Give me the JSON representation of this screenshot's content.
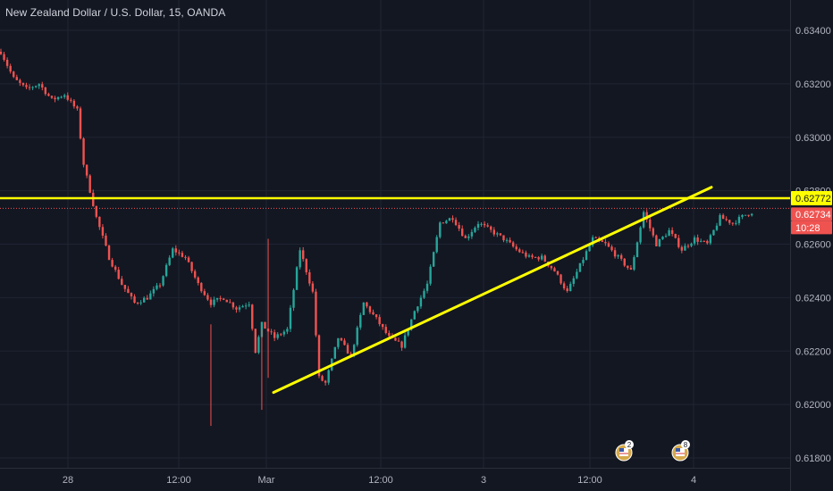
{
  "title": "New Zealand Dollar / U.S. Dollar, 15, OANDA",
  "colors": {
    "background": "#131722",
    "grid": "#1f2433",
    "up": "#26a69a",
    "down": "#ef5350",
    "trendline": "#ffff00",
    "axis_text": "#b2b5be"
  },
  "price_axis": {
    "ticks": [
      "0.63400",
      "0.63200",
      "0.63000",
      "0.62800",
      "0.62600",
      "0.62400",
      "0.62200",
      "0.62000",
      "0.61800"
    ]
  },
  "time_axis": {
    "ticks": [
      "28",
      "12:00",
      "Mar",
      "12:00",
      "3",
      "12:00",
      "4"
    ]
  },
  "price_tags": {
    "resistance": "0.62772",
    "last_price": "0.62734",
    "countdown": "10:28"
  },
  "events": [
    {
      "icon": "us-flag-event-icon",
      "count": "2"
    },
    {
      "icon": "us-flag-event-icon",
      "count": "8"
    }
  ],
  "chart_data": {
    "type": "candlestick",
    "title": "New Zealand Dollar / U.S. Dollar, 15, OANDA",
    "ylim": [
      0.6178,
      0.6352
    ],
    "y_ticks": [
      0.634,
      0.632,
      0.63,
      0.628,
      0.626,
      0.624,
      0.622,
      0.62,
      0.618
    ],
    "x_ticks": [
      "28",
      "12:00",
      "Mar",
      "12:00",
      "3",
      "12:00",
      "4"
    ],
    "grid": true,
    "price_path": [
      [
        0,
        0.6332
      ],
      [
        4,
        0.6322
      ],
      [
        8,
        0.6318
      ],
      [
        12,
        0.632
      ],
      [
        16,
        0.6314
      ],
      [
        20,
        0.6316
      ],
      [
        24,
        0.631
      ],
      [
        26,
        0.629
      ],
      [
        30,
        0.627
      ],
      [
        34,
        0.6255
      ],
      [
        38,
        0.6245
      ],
      [
        42,
        0.6238
      ],
      [
        46,
        0.624
      ],
      [
        50,
        0.6245
      ],
      [
        54,
        0.6258
      ],
      [
        58,
        0.6255
      ],
      [
        62,
        0.6245
      ],
      [
        66,
        0.6238
      ],
      [
        70,
        0.624
      ],
      [
        74,
        0.6236
      ],
      [
        78,
        0.6238
      ],
      [
        80,
        0.622
      ],
      [
        82,
        0.623
      ],
      [
        86,
        0.6225
      ],
      [
        90,
        0.6228
      ],
      [
        94,
        0.6258
      ],
      [
        98,
        0.6242
      ],
      [
        100,
        0.621
      ],
      [
        102,
        0.6208
      ],
      [
        106,
        0.6225
      ],
      [
        110,
        0.6218
      ],
      [
        114,
        0.6238
      ],
      [
        118,
        0.6232
      ],
      [
        122,
        0.6225
      ],
      [
        126,
        0.6222
      ],
      [
        130,
        0.6235
      ],
      [
        134,
        0.6245
      ],
      [
        138,
        0.6268
      ],
      [
        142,
        0.627
      ],
      [
        146,
        0.6262
      ],
      [
        150,
        0.6268
      ],
      [
        154,
        0.6265
      ],
      [
        158,
        0.6262
      ],
      [
        162,
        0.6258
      ],
      [
        166,
        0.6255
      ],
      [
        170,
        0.6255
      ],
      [
        174,
        0.625
      ],
      [
        178,
        0.6242
      ],
      [
        182,
        0.6252
      ],
      [
        186,
        0.6262
      ],
      [
        190,
        0.626
      ],
      [
        194,
        0.6255
      ],
      [
        198,
        0.625
      ],
      [
        202,
        0.6272
      ],
      [
        206,
        0.626
      ],
      [
        210,
        0.6265
      ],
      [
        214,
        0.6258
      ],
      [
        218,
        0.6262
      ],
      [
        222,
        0.626
      ],
      [
        226,
        0.627
      ],
      [
        230,
        0.6268
      ],
      [
        234,
        0.6271
      ],
      [
        236,
        0.6272
      ]
    ],
    "series": [
      {
        "role": "horizontal-level",
        "y": 0.62772
      },
      {
        "role": "ascending-trendline",
        "points": [
          [
            102,
            0.62045
          ],
          [
            253,
            0.62813
          ]
        ]
      },
      {
        "role": "last-price-line",
        "y": 0.62734
      }
    ],
    "last_price": 0.62734,
    "resistance_level": 0.62772
  }
}
